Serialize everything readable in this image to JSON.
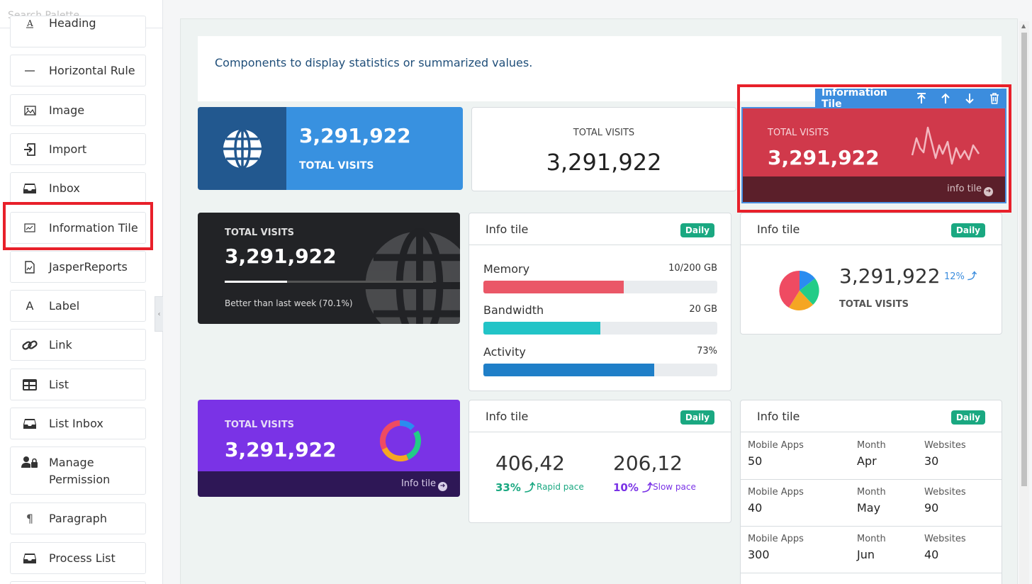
{
  "palette": {
    "search_placeholder": "Search Palette",
    "items": [
      {
        "label": "Heading",
        "icon": "heading-icon"
      },
      {
        "label": "Horizontal Rule",
        "icon": "horizontal-rule-icon"
      },
      {
        "label": "Image",
        "icon": "image-icon"
      },
      {
        "label": "Import",
        "icon": "import-icon"
      },
      {
        "label": "Inbox",
        "icon": "inbox-icon"
      },
      {
        "label": "Information Tile",
        "icon": "chart-icon"
      },
      {
        "label": "JasperReports",
        "icon": "report-icon"
      },
      {
        "label": "Label",
        "icon": "label-icon"
      },
      {
        "label": "Link",
        "icon": "link-icon"
      },
      {
        "label": "List",
        "icon": "list-icon"
      },
      {
        "label": "List Inbox",
        "icon": "inbox-icon"
      },
      {
        "label": "Manage Permission",
        "icon": "user-lock-icon"
      },
      {
        "label": "Paragraph",
        "icon": "paragraph-icon"
      },
      {
        "label": "Process List",
        "icon": "inbox-icon"
      }
    ]
  },
  "canvas": {
    "description": "Components to display statistics or summarized values.",
    "toolbar": {
      "title": "Information Tile"
    },
    "tile1": {
      "value": "3,291,922",
      "label": "TOTAL VISITS"
    },
    "tile2": {
      "value": "3,291,922",
      "label": "TOTAL VISITS"
    },
    "tile3": {
      "value": "3,291,922",
      "label": "TOTAL VISITS",
      "footer": "info tile"
    },
    "tile4": {
      "value": "3,291,922",
      "label": "TOTAL VISITS",
      "sub": "Better than last week (70.1%)",
      "progress": 0.3
    },
    "tile5": {
      "title": "Info tile",
      "badge": "Daily",
      "rows": [
        {
          "label": "Memory",
          "value": "10/200 GB",
          "pct": 0.6,
          "color": "#ea5767"
        },
        {
          "label": "Bandwidth",
          "value": "20 GB",
          "pct": 0.5,
          "color": "#22c4c7"
        },
        {
          "label": "Activity",
          "value": "73%",
          "pct": 0.73,
          "color": "#1f7fc8"
        }
      ]
    },
    "tile6": {
      "title": "Info tile",
      "badge": "Daily",
      "value": "3,291,922",
      "label": "TOTAL VISITS",
      "pct": "12%"
    },
    "tile7": {
      "value": "3,291,922",
      "label": "TOTAL VISITS",
      "footer": "Info tile"
    },
    "tile8": {
      "title": "Info tile",
      "badge": "Daily",
      "stats": [
        {
          "value": "406,42",
          "pct": "33%",
          "pace": "Rapid pace",
          "color": "#1aa881"
        },
        {
          "value": "206,12",
          "pct": "10%",
          "pace": "Slow pace",
          "color": "#7a33e6"
        }
      ]
    },
    "tile9": {
      "title": "Info tile",
      "badge": "Daily",
      "headers": [
        "Mobile Apps",
        "Month",
        "Websites"
      ],
      "rows": [
        [
          "50",
          "Apr",
          "30"
        ],
        [
          "40",
          "May",
          "90"
        ],
        [
          "300",
          "Jun",
          "40"
        ]
      ]
    }
  }
}
